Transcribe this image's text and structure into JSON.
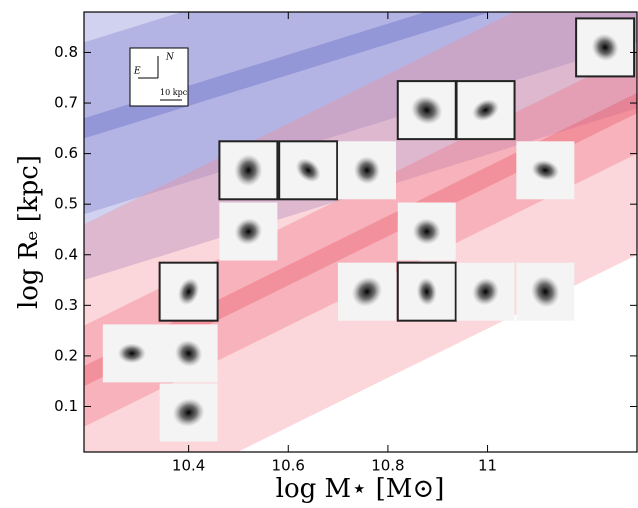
{
  "chart_data": {
    "type": "scatter",
    "xlabel": "log M⋆ [M⊙]",
    "ylabel": "log Rₑ [kpc]",
    "xlim": [
      10.19,
      11.3
    ],
    "ylim": [
      0.01,
      0.88
    ],
    "xticks": [
      10.4,
      10.6,
      10.8,
      11.0
    ],
    "yticks": [
      0.1,
      0.2,
      0.3,
      0.4,
      0.5,
      0.6,
      0.7,
      0.8
    ],
    "bands": [
      {
        "color": "#7b7fd0",
        "lower": [
          0.35,
          0.69
        ],
        "upper": [
          0.95,
          1.29
        ]
      },
      {
        "color": "#7b7fd0",
        "lower": [
          0.48,
          0.82
        ],
        "upper": [
          0.82,
          1.16
        ]
      },
      {
        "color": "#5a5fc0",
        "lower": [
          0.63,
          0.97
        ],
        "upper": [
          0.67,
          1.01
        ]
      },
      {
        "color": "#f48a96",
        "lower": [
          -0.14,
          0.4
        ],
        "upper": [
          0.46,
          1.0
        ]
      },
      {
        "color": "#f07080",
        "lower": [
          0.06,
          0.6
        ],
        "upper": [
          0.26,
          0.8
        ]
      },
      {
        "color": "#e85060",
        "lower": [
          0.14,
          0.68
        ],
        "upper": [
          0.18,
          0.72
        ]
      }
    ],
    "x": [
      10.286,
      10.4,
      10.4,
      10.4,
      10.52,
      10.52,
      10.64,
      10.758,
      10.878,
      10.996,
      10.878,
      10.758,
      10.878,
      10.996,
      11.116,
      11.116,
      11.236
    ],
    "values": [
      0.205,
      0.205,
      0.088,
      0.327,
      0.446,
      0.567,
      0.567,
      0.567,
      0.686,
      0.686,
      0.446,
      0.327,
      0.327,
      0.327,
      0.327,
      0.567,
      0.81
    ],
    "framed": [
      false,
      false,
      false,
      true,
      false,
      true,
      true,
      false,
      true,
      true,
      false,
      false,
      true,
      false,
      false,
      false,
      true
    ],
    "compass": {
      "north": "N",
      "east": "E",
      "scale": "10 kpc"
    }
  }
}
